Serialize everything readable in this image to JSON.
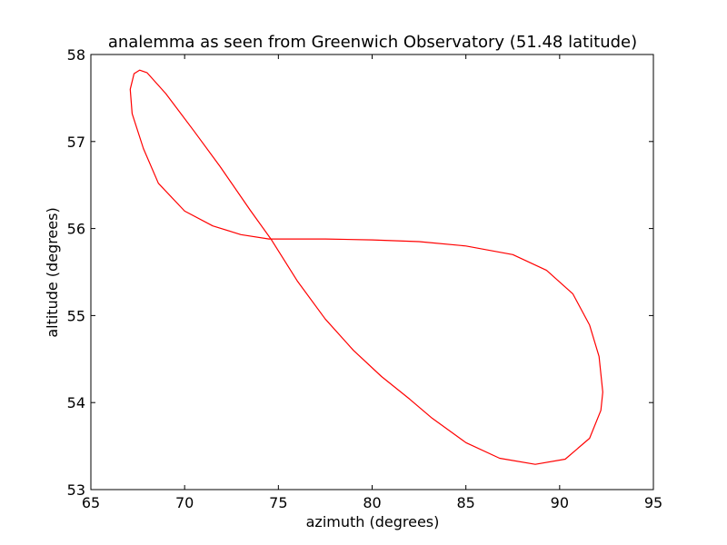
{
  "chart_data": {
    "type": "line",
    "title": "analemma as seen from Greenwich Observatory (51.48 latitude)",
    "xlabel": "azimuth (degrees)",
    "ylabel": "altitude (degrees)",
    "xlim": [
      65,
      95
    ],
    "ylim": [
      53,
      58
    ],
    "xticks": [
      "65",
      "70",
      "75",
      "80",
      "85",
      "90",
      "95"
    ],
    "yticks": [
      "53",
      "54",
      "55",
      "56",
      "57",
      "58"
    ],
    "grid": false,
    "series": [
      {
        "color": "#ff0000",
        "points": [
          [
            83.2,
            53.82
          ],
          [
            85.0,
            53.54
          ],
          [
            86.8,
            53.36
          ],
          [
            88.7,
            53.29
          ],
          [
            90.3,
            53.35
          ],
          [
            91.6,
            53.59
          ],
          [
            92.2,
            53.91
          ],
          [
            92.3,
            54.12
          ],
          [
            92.1,
            54.53
          ],
          [
            91.6,
            54.89
          ],
          [
            90.7,
            55.25
          ],
          [
            89.3,
            55.52
          ],
          [
            87.5,
            55.7
          ],
          [
            85.0,
            55.8
          ],
          [
            82.5,
            55.85
          ],
          [
            80.0,
            55.87
          ],
          [
            77.5,
            55.88
          ],
          [
            75.5,
            55.88
          ],
          [
            74.5,
            55.88
          ],
          [
            73.0,
            55.93
          ],
          [
            71.5,
            56.03
          ],
          [
            70.0,
            56.2
          ],
          [
            68.6,
            56.52
          ],
          [
            67.8,
            56.92
          ],
          [
            67.2,
            57.32
          ],
          [
            67.1,
            57.6
          ],
          [
            67.3,
            57.78
          ],
          [
            67.6,
            57.82
          ],
          [
            68.0,
            57.79
          ],
          [
            69.0,
            57.55
          ],
          [
            70.5,
            57.12
          ],
          [
            71.9,
            56.71
          ],
          [
            73.5,
            56.21
          ],
          [
            74.6,
            55.88
          ],
          [
            76.0,
            55.4
          ],
          [
            77.5,
            54.96
          ],
          [
            79.0,
            54.6
          ],
          [
            80.5,
            54.3
          ],
          [
            82.0,
            54.04
          ],
          [
            83.2,
            53.82
          ]
        ]
      }
    ]
  }
}
